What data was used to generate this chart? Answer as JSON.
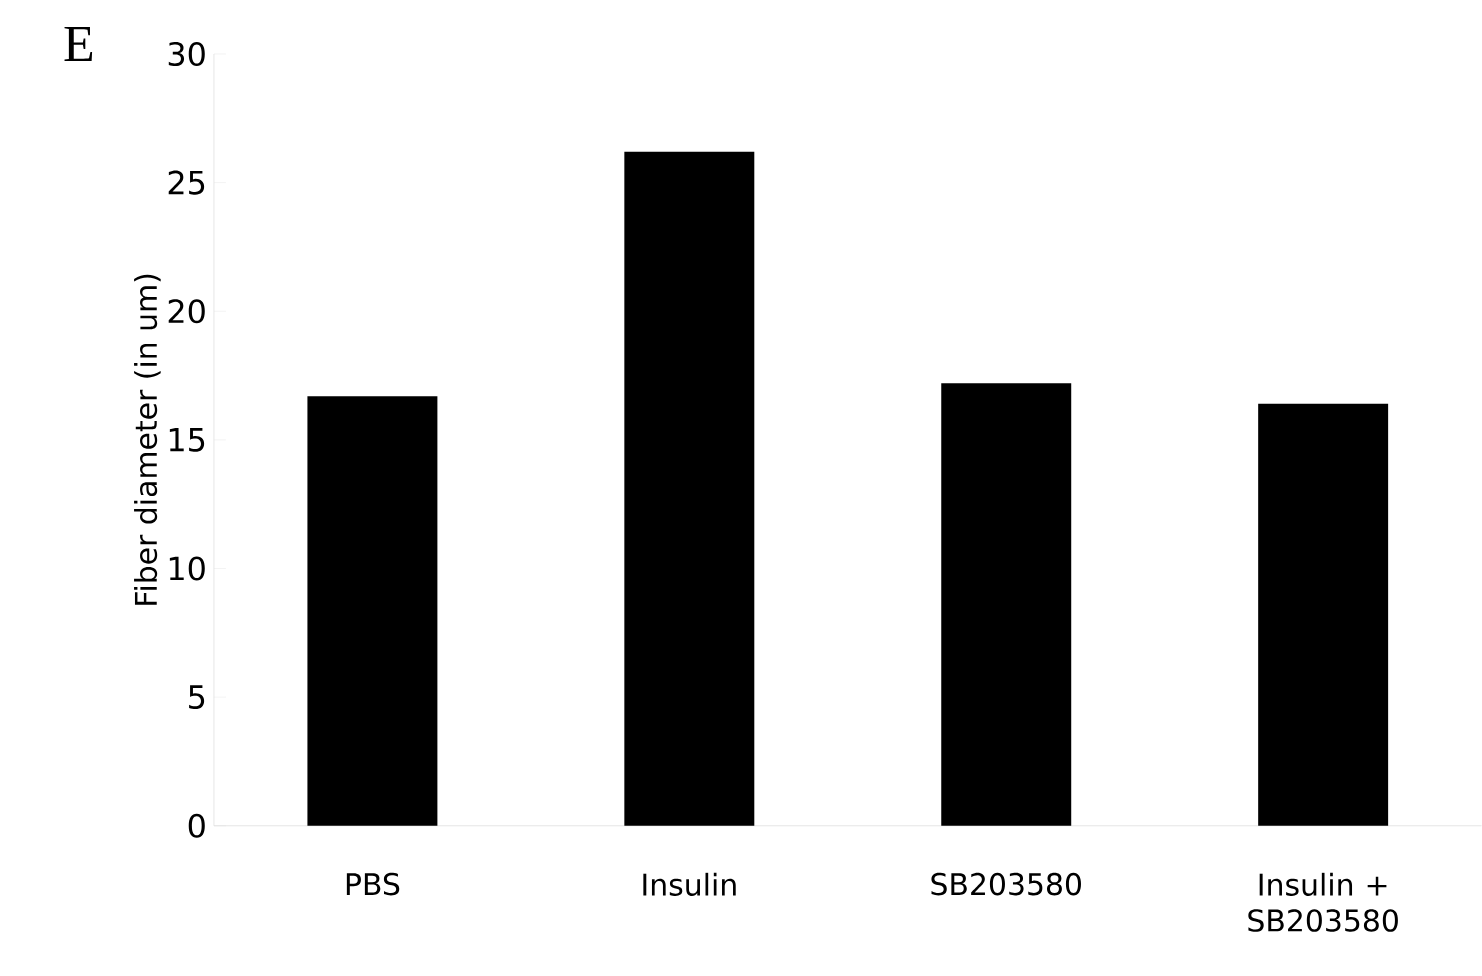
{
  "chart_data": {
    "type": "bar",
    "annotations": [
      "E"
    ],
    "ylabel": "Fiber diameter (in um)",
    "categories": [
      "PBS",
      "Insulin",
      "SB203580",
      "Insulin + SB203580"
    ],
    "values": [
      16.7,
      26.2,
      17.2,
      16.4
    ],
    "color": "#000000",
    "ylim": [
      0,
      30
    ],
    "yticks": [
      0,
      5,
      10,
      15,
      20,
      25,
      30
    ]
  }
}
